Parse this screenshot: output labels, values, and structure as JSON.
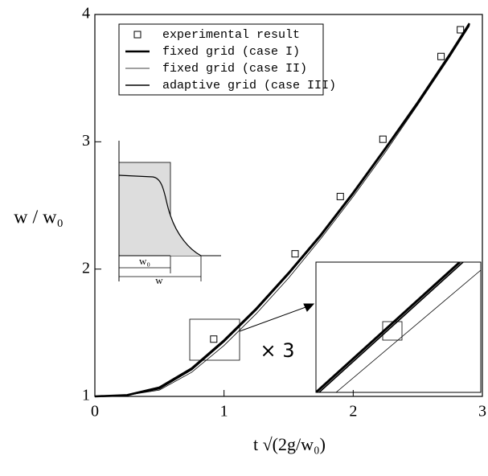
{
  "chart_data": {
    "type": "line",
    "xlabel": "t √(2g/w₀)",
    "ylabel": "w / w₀",
    "xlim": [
      0,
      3
    ],
    "ylim": [
      1,
      4
    ],
    "xticks": [
      0,
      1,
      2,
      3
    ],
    "yticks": [
      1,
      2,
      3,
      4
    ],
    "legend": "upper-left",
    "annotations": [
      "w₀",
      "w",
      "× 3"
    ],
    "series": [
      {
        "name": "experimental result",
        "mode": "markers",
        "color": "#000000",
        "x": [
          0.92,
          1.55,
          1.9,
          2.23,
          2.68,
          2.83
        ],
        "values": [
          1.45,
          2.12,
          2.57,
          3.02,
          3.67,
          3.88
        ]
      },
      {
        "name": "fixed grid (case I)",
        "mode": "lines",
        "color": "#000000",
        "x": [
          0,
          0.25,
          0.5,
          0.75,
          1,
          1.25,
          1.5,
          1.75,
          2,
          2.25,
          2.5,
          2.75,
          2.9
        ],
        "values": [
          1,
          1.01,
          1.07,
          1.22,
          1.44,
          1.69,
          1.97,
          2.27,
          2.6,
          2.95,
          3.31,
          3.69,
          3.93
        ]
      },
      {
        "name": "fixed grid (case II)",
        "mode": "lines",
        "color": "#000000",
        "x": [
          0,
          0.25,
          0.5,
          0.75,
          1,
          1.25,
          1.5,
          1.75,
          2,
          2.25,
          2.5,
          2.75,
          2.9
        ],
        "values": [
          1,
          1.01,
          1.05,
          1.19,
          1.4,
          1.65,
          1.93,
          2.24,
          2.57,
          2.92,
          3.29,
          3.67,
          3.91
        ]
      },
      {
        "name": "adaptive grid (case III)",
        "mode": "lines",
        "color": "#000000",
        "x": [
          0,
          0.25,
          0.5,
          0.75,
          1,
          1.25,
          1.5,
          1.75,
          2,
          2.25,
          2.5,
          2.75,
          2.9
        ],
        "values": [
          1,
          1.01,
          1.06,
          1.21,
          1.43,
          1.68,
          1.96,
          2.26,
          2.59,
          2.94,
          3.3,
          3.68,
          3.92
        ]
      }
    ]
  }
}
